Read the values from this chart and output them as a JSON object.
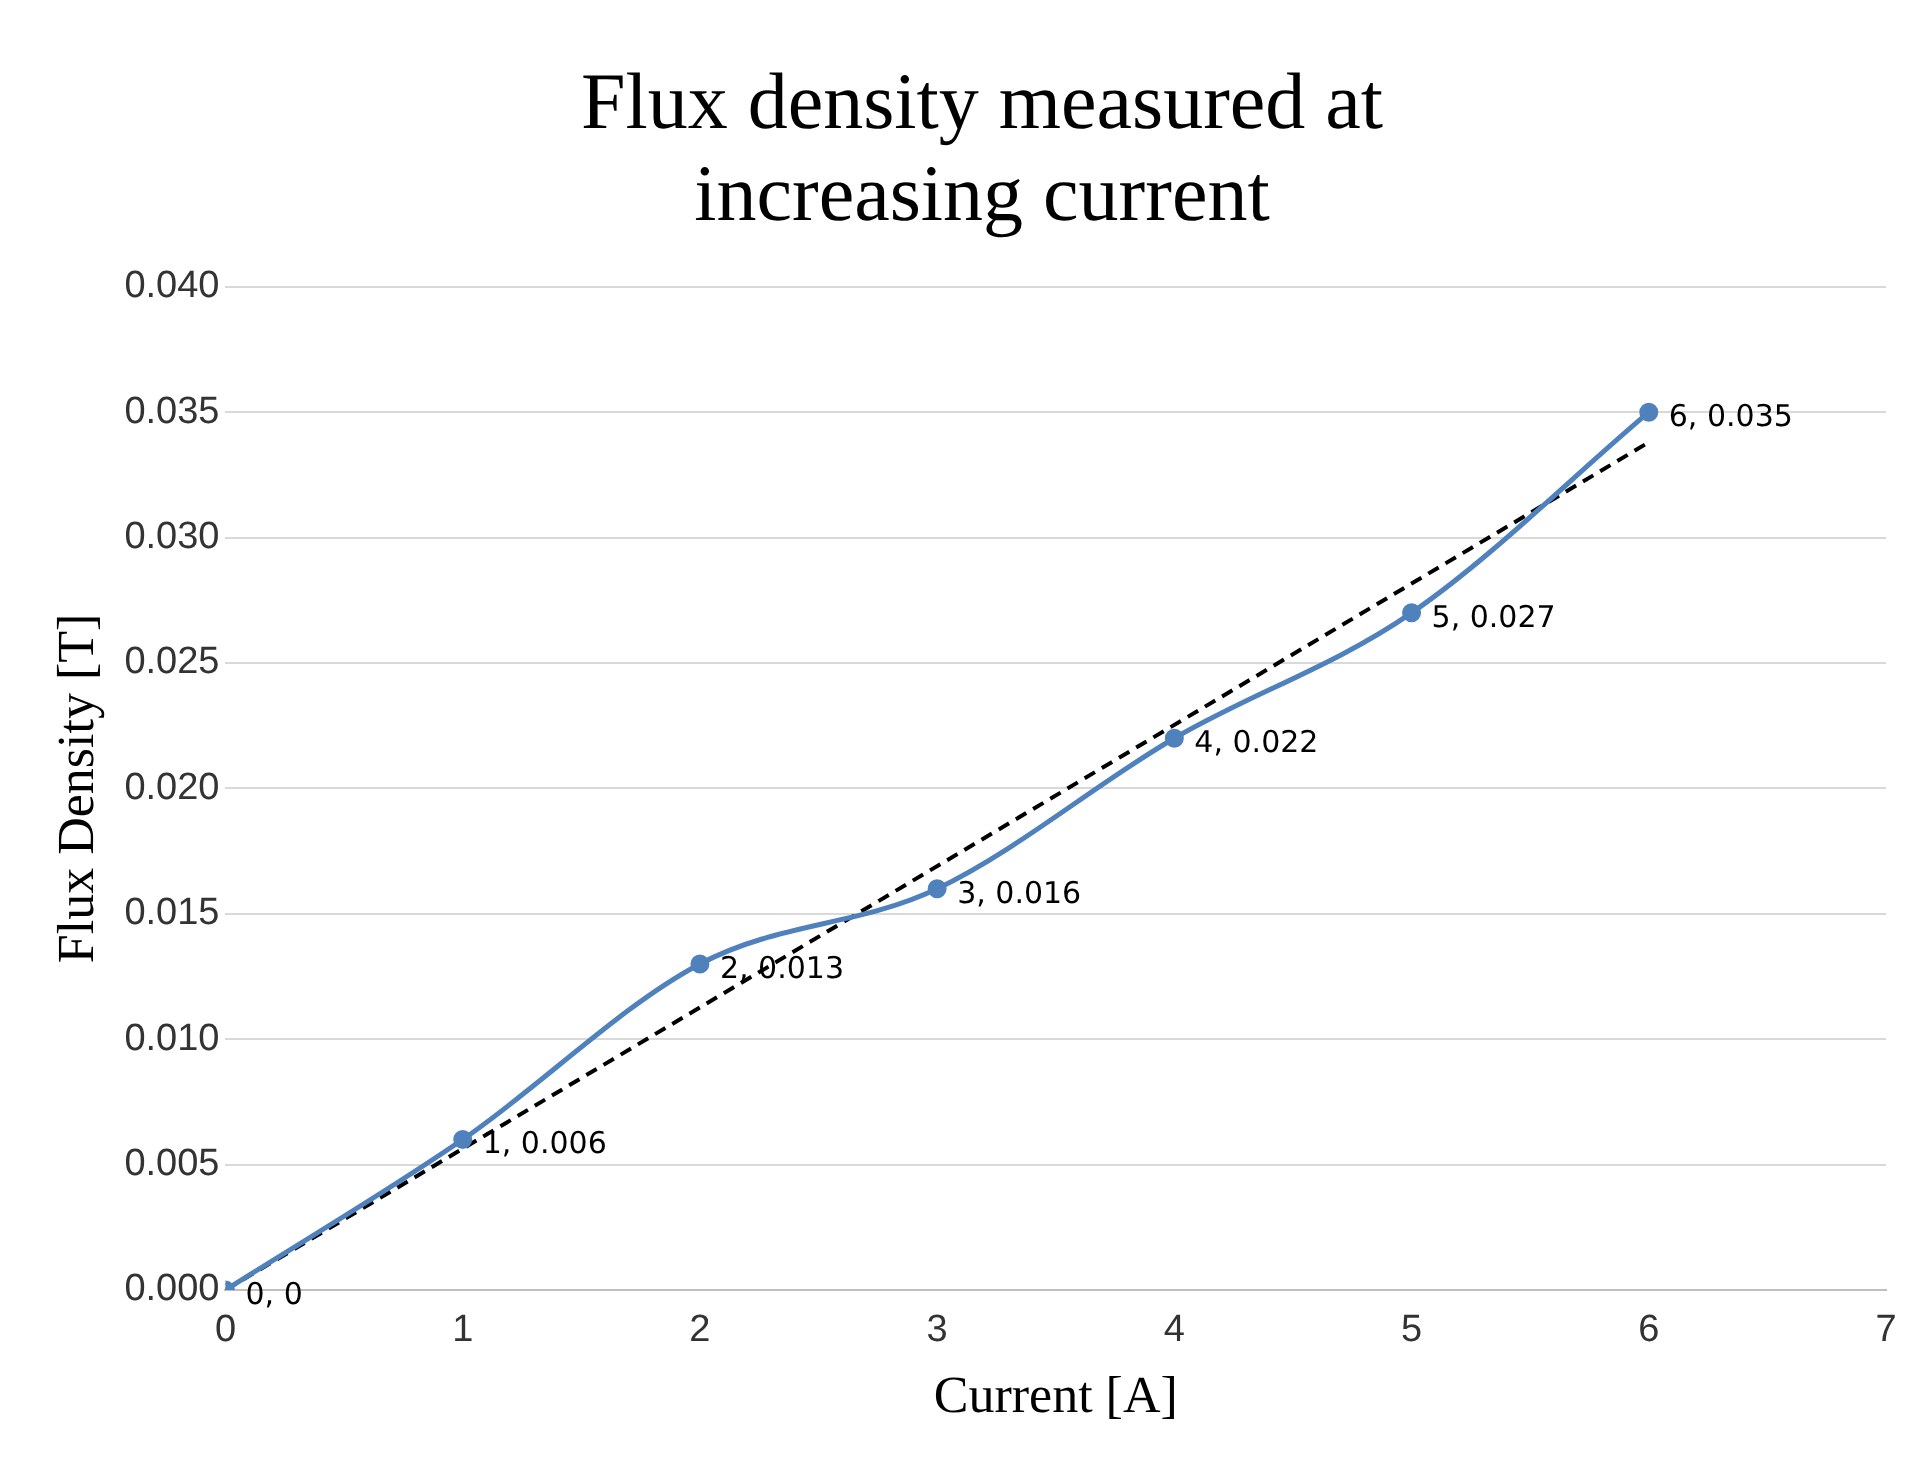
{
  "chart_data": {
    "type": "line",
    "title": "Flux density measured at increasing current",
    "xlabel": "Current [A]",
    "ylabel": "Flux Density [T]",
    "x": [
      0,
      1,
      2,
      3,
      4,
      5,
      6
    ],
    "series": [
      {
        "color": "#4f81bd",
        "values": [
          0,
          0.006,
          0.013,
          0.016,
          0.022,
          0.027,
          0.035
        ],
        "value_labels": [
          "0, 0",
          "1, 0.006",
          "2, 0.013",
          "3, 0.016",
          "4, 0.022",
          "5, 0.027",
          "6, 0.035"
        ],
        "marker": "circle",
        "line_style": "solid"
      },
      {
        "type": "line",
        "color": "#000000",
        "x": [
          0,
          6
        ],
        "values": [
          0,
          0.0338
        ],
        "marker": "none",
        "line_style": "dashed"
      }
    ],
    "xlim": [
      0,
      7
    ],
    "xticks": [
      0,
      1,
      2,
      3,
      4,
      5,
      6,
      7
    ],
    "ylim": [
      0,
      0.04
    ],
    "yticks": [
      {
        "value": 0,
        "label": "0.000"
      },
      {
        "value": 0.005,
        "label": "0.005"
      },
      {
        "value": 0.01,
        "label": "0.010"
      },
      {
        "value": 0.015,
        "label": "0.015"
      },
      {
        "value": 0.02,
        "label": "0.020"
      },
      {
        "value": 0.025,
        "label": "0.025"
      },
      {
        "value": 0.03,
        "label": "0.030"
      },
      {
        "value": 0.035,
        "label": "0.035"
      },
      {
        "value": 0.04,
        "label": "0.040"
      }
    ],
    "grid": "y"
  }
}
